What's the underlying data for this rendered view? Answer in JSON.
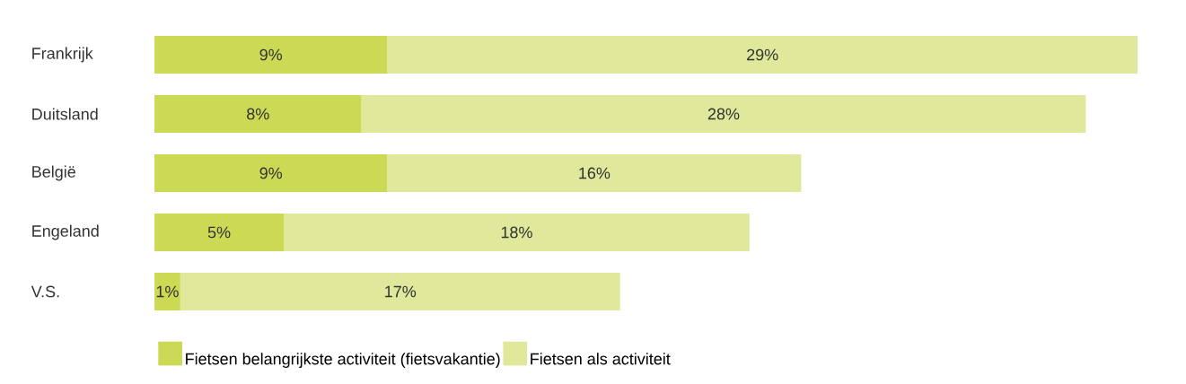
{
  "chart_data": {
    "type": "bar",
    "orientation": "horizontal",
    "stacked": true,
    "legend": "bottom",
    "categories": [
      "Frankrijk",
      "Duitsland",
      "België",
      "Engeland",
      "V.S."
    ],
    "series": [
      {
        "name": "Fietsen belangrijkste activiteit (fietsvakantie)",
        "color": "#cbd955",
        "values": [
          9,
          8,
          9,
          5,
          1
        ],
        "value_labels": [
          "9%",
          "8%",
          "9%",
          "5%",
          "1%"
        ]
      },
      {
        "name": "Fietsen als activiteit",
        "color": "#e0e89c",
        "values": [
          29,
          28,
          16,
          18,
          17
        ],
        "value_labels": [
          "29%",
          "28%",
          "16%",
          "18%",
          "17%"
        ]
      }
    ]
  }
}
